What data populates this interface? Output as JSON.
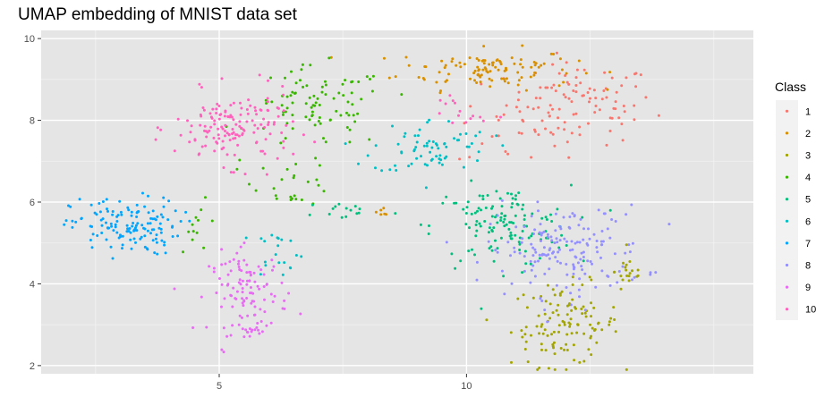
{
  "chart_data": {
    "type": "scatter",
    "title": "UMAP embedding of MNIST data set",
    "xlabel": "",
    "ylabel": "",
    "xlim": [
      1.4,
      15.8
    ],
    "ylim": [
      1.8,
      10.2
    ],
    "x_ticks": [
      5,
      10
    ],
    "y_ticks": [
      2,
      4,
      6,
      8,
      10
    ],
    "grid": true,
    "background": "#e5e5e5",
    "legend": {
      "title": "Class",
      "position": "right"
    },
    "series": [
      {
        "name": "1",
        "color": "#F8766D",
        "clusters": [
          {
            "cx": 12.3,
            "cy": 8.4,
            "sx": 0.75,
            "sy": 0.5,
            "n": 95
          },
          {
            "cx": 11.0,
            "cy": 7.8,
            "sx": 0.6,
            "sy": 0.5,
            "n": 25
          }
        ]
      },
      {
        "name": "2",
        "color": "#D89000",
        "clusters": [
          {
            "cx": 10.4,
            "cy": 9.25,
            "sx": 0.9,
            "sy": 0.25,
            "n": 110
          },
          {
            "cx": 8.3,
            "cy": 5.75,
            "sx": 0.15,
            "sy": 0.06,
            "n": 6
          }
        ]
      },
      {
        "name": "3",
        "color": "#A3A500",
        "clusters": [
          {
            "cx": 12.0,
            "cy": 3.0,
            "sx": 0.55,
            "sy": 0.5,
            "n": 120
          },
          {
            "cx": 13.3,
            "cy": 4.3,
            "sx": 0.15,
            "sy": 0.2,
            "n": 18
          }
        ]
      },
      {
        "name": "4",
        "color": "#39B600",
        "clusters": [
          {
            "cx": 7.0,
            "cy": 8.3,
            "sx": 0.7,
            "sy": 0.5,
            "n": 90
          },
          {
            "cx": 6.5,
            "cy": 6.5,
            "sx": 0.4,
            "sy": 0.3,
            "n": 25
          },
          {
            "cx": 4.6,
            "cy": 5.4,
            "sx": 0.2,
            "sy": 0.3,
            "n": 12
          }
        ]
      },
      {
        "name": "5",
        "color": "#00BF7D",
        "clusters": [
          {
            "cx": 10.7,
            "cy": 5.4,
            "sx": 0.7,
            "sy": 0.5,
            "n": 130
          },
          {
            "cx": 7.6,
            "cy": 5.8,
            "sx": 0.45,
            "sy": 0.12,
            "n": 15
          }
        ]
      },
      {
        "name": "6",
        "color": "#00BFC4",
        "clusters": [
          {
            "cx": 9.3,
            "cy": 7.35,
            "sx": 0.6,
            "sy": 0.35,
            "n": 70
          },
          {
            "cx": 6.2,
            "cy": 4.8,
            "sx": 0.25,
            "sy": 0.3,
            "n": 20
          }
        ]
      },
      {
        "name": "7",
        "color": "#00A5FF",
        "clusters": [
          {
            "cx": 3.1,
            "cy": 5.4,
            "sx": 0.55,
            "sy": 0.35,
            "n": 140
          }
        ]
      },
      {
        "name": "8",
        "color": "#9590FF",
        "clusters": [
          {
            "cx": 12.0,
            "cy": 4.8,
            "sx": 0.8,
            "sy": 0.55,
            "n": 170
          }
        ]
      },
      {
        "name": "9",
        "color": "#E76BF3",
        "clusters": [
          {
            "cx": 5.6,
            "cy": 3.8,
            "sx": 0.4,
            "sy": 0.5,
            "n": 110
          },
          {
            "cx": 5.6,
            "cy": 2.85,
            "sx": 0.1,
            "sy": 0.06,
            "n": 12
          }
        ]
      },
      {
        "name": "10",
        "color": "#FF62BC",
        "clusters": [
          {
            "cx": 5.3,
            "cy": 7.8,
            "sx": 0.6,
            "sy": 0.45,
            "n": 150
          },
          {
            "cx": 9.8,
            "cy": 8.2,
            "sx": 0.3,
            "sy": 0.3,
            "n": 15
          }
        ]
      }
    ]
  }
}
